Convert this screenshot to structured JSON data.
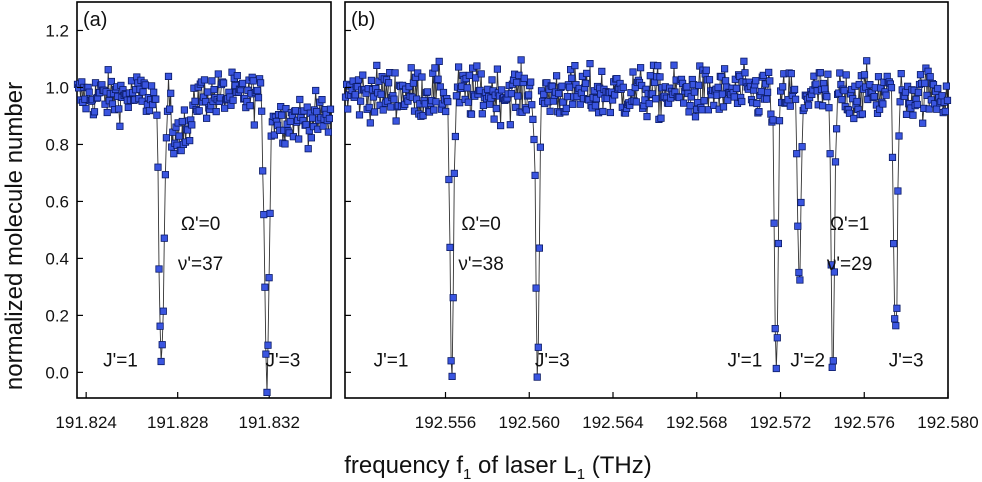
{
  "chart_data": [
    {
      "type": "scatter",
      "panel_label": "(a)",
      "xlim": [
        191.8236,
        191.8347
      ],
      "ylim": [
        -0.09,
        1.3
      ],
      "xticks": [
        191.824,
        191.828,
        191.832
      ],
      "xtick_labels": [
        "191.824",
        "191.828",
        "191.832"
      ],
      "annotations": [
        {
          "text": "Ω'=0",
          "x": 191.829,
          "y": 0.5
        },
        {
          "text": "ν'=37",
          "x": 191.829,
          "y": 0.36
        },
        {
          "text": "J'=1",
          "x": 191.8255,
          "y": 0.02
        },
        {
          "text": "J'=3",
          "x": 191.8326,
          "y": 0.02
        }
      ],
      "dips": [
        {
          "x": 191.8273,
          "depth": 1.0
        },
        {
          "x": 191.8319,
          "depth": 0.98
        }
      ],
      "baseline": 0.97,
      "noise": 0.08
    },
    {
      "type": "scatter",
      "panel_label": "(b)",
      "xlim": [
        192.5512,
        192.58
      ],
      "ylim": [
        -0.09,
        1.3
      ],
      "xticks": [
        192.556,
        192.56,
        192.564,
        192.568,
        192.572,
        192.576,
        192.58
      ],
      "xtick_labels": [
        "192.556",
        "192.560",
        "192.564",
        "192.568",
        "192.572",
        "192.576",
        "192.580"
      ],
      "annotations": [
        {
          "text": "Ω'=0",
          "x": 192.5577,
          "y": 0.5
        },
        {
          "text": "ν'=38",
          "x": 192.5577,
          "y": 0.36
        },
        {
          "text": "J'=1",
          "x": 192.5534,
          "y": 0.02
        },
        {
          "text": "J'=3",
          "x": 192.5611,
          "y": 0.02
        },
        {
          "text": "Ω'=1",
          "x": 192.5753,
          "y": 0.5
        },
        {
          "text": "ν'=29",
          "x": 192.5753,
          "y": 0.36
        },
        {
          "text": "J'=1",
          "x": 192.5703,
          "y": 0.02
        },
        {
          "text": "J'=2",
          "x": 192.5733,
          "y": 0.02
        },
        {
          "text": "J'=3",
          "x": 192.578,
          "y": 0.02
        }
      ],
      "dips": [
        {
          "x": 192.5563,
          "depth": 1.0
        },
        {
          "x": 192.5604,
          "depth": 0.97
        },
        {
          "x": 192.5718,
          "depth": 1.05
        },
        {
          "x": 192.5729,
          "depth": 0.7
        },
        {
          "x": 192.5745,
          "depth": 1.0
        },
        {
          "x": 192.5775,
          "depth": 0.9
        }
      ],
      "baseline": 0.98,
      "noise": 0.09
    }
  ],
  "y_axis": {
    "label": "normalized molecule number",
    "ticks": [
      0.0,
      0.2,
      0.4,
      0.6,
      0.8,
      1.0,
      1.2
    ],
    "tick_labels": [
      "0.0",
      "0.2",
      "0.4",
      "0.6",
      "0.8",
      "1.0",
      "1.2"
    ]
  },
  "x_axis": {
    "label": "frequency f",
    "label_sub1": "1",
    "label_mid": " of laser L",
    "label_sub2": "1",
    "label_end": " (THz)"
  },
  "colors": {
    "marker_fill": "#3a55e0",
    "marker_stroke": "#0a1a66",
    "line": "#333333",
    "axis": "#000000"
  }
}
